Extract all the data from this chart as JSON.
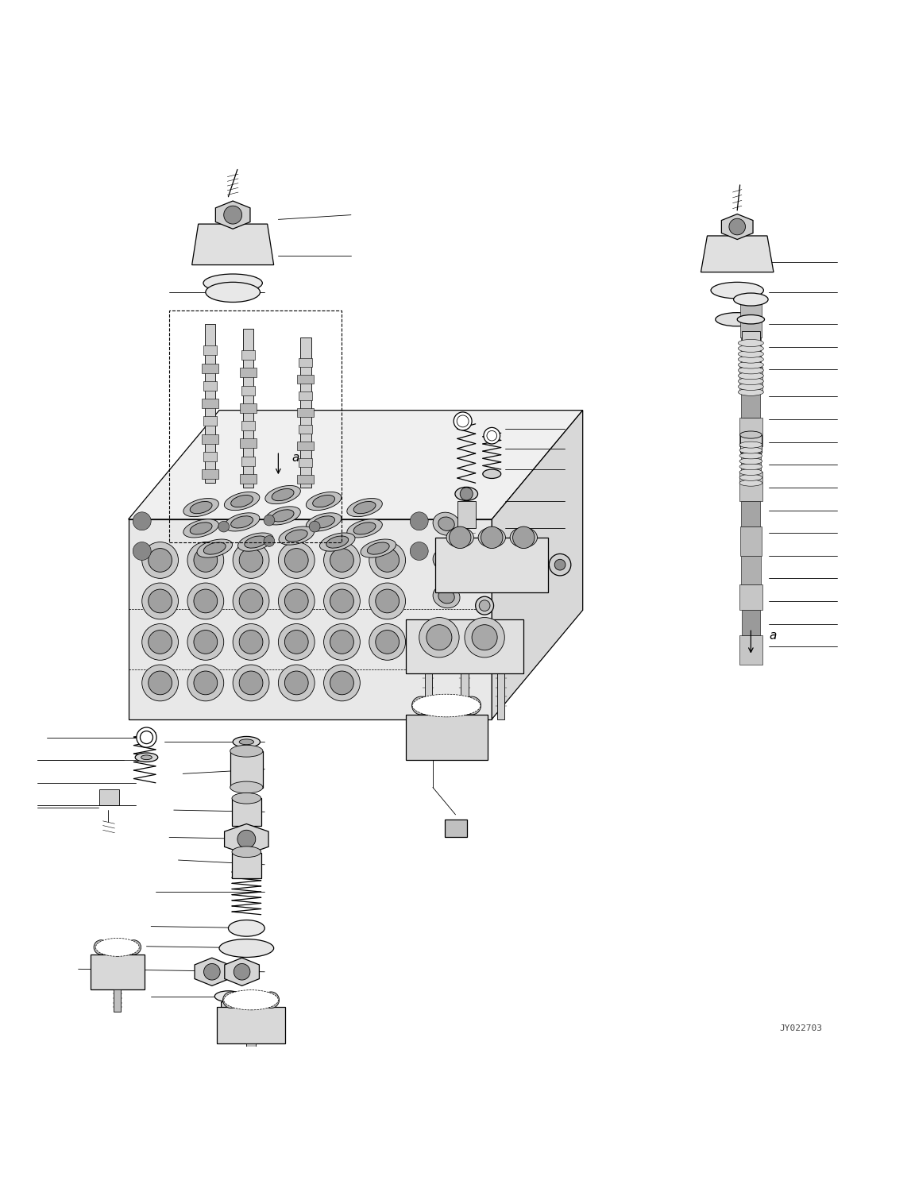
{
  "bg_color": "#ffffff",
  "line_color": "#000000",
  "watermark": "JY022703",
  "fig_width": 11.47,
  "fig_height": 14.91
}
